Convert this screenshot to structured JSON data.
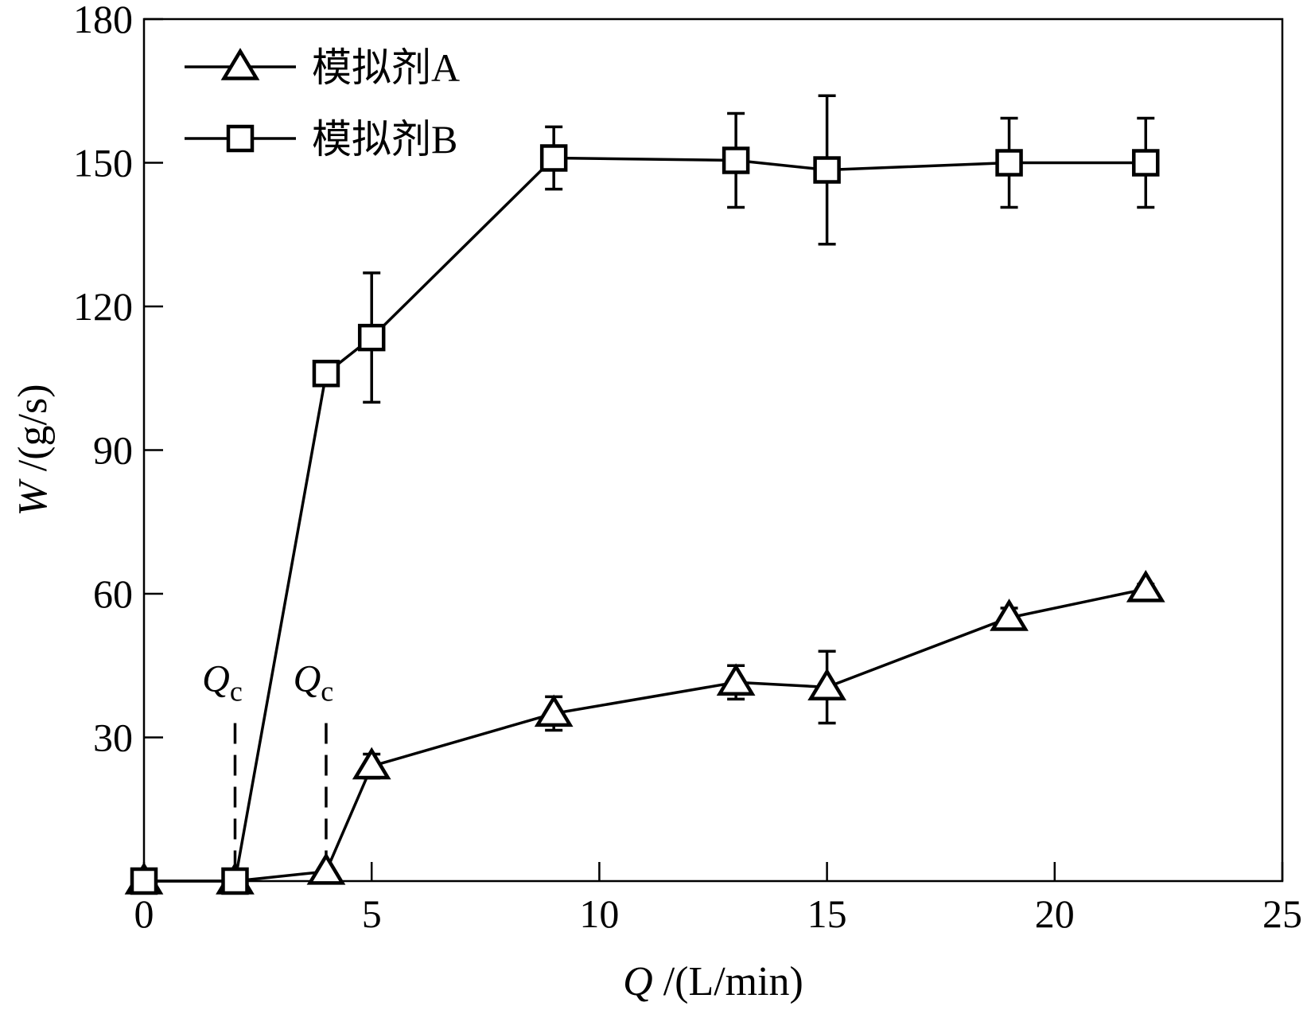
{
  "chart_data": {
    "type": "line",
    "xlabel": {
      "var": "Q",
      "unit": "/(L/min)"
    },
    "ylabel": {
      "var": "W",
      "unit": "/(g/s)"
    },
    "xlim": [
      0,
      25
    ],
    "ylim": [
      0,
      180
    ],
    "xticks": [
      0,
      5,
      10,
      15,
      20,
      25
    ],
    "yticks": [
      30,
      60,
      90,
      120,
      150,
      180
    ],
    "grid": false,
    "legend_position": "top-left",
    "series": [
      {
        "name": "模拟剂A",
        "marker": "triangle",
        "x": [
          0,
          2,
          4,
          5,
          9,
          13,
          15,
          19,
          22
        ],
        "y": [
          0,
          0,
          2,
          24,
          35,
          41.5,
          40.5,
          55,
          61
        ],
        "err": [
          0,
          0,
          0,
          2.5,
          3.5,
          3.5,
          7.5,
          2,
          1
        ]
      },
      {
        "name": "模拟剂B",
        "marker": "square",
        "x": [
          0,
          2,
          4,
          5,
          9,
          13,
          15,
          19,
          22
        ],
        "y": [
          0,
          0,
          106,
          113.5,
          151,
          150.5,
          148.5,
          150,
          150
        ],
        "err": [
          0,
          0,
          0,
          13.5,
          6.5,
          9.8,
          15.5,
          9.3,
          9.3
        ]
      }
    ],
    "annotations": [
      {
        "label": "Q",
        "subscript": "c",
        "x": 2,
        "y_top": 33,
        "style": "dashed"
      },
      {
        "label": "Q",
        "subscript": "c",
        "x": 4,
        "y_top": 33,
        "style": "dashed"
      }
    ]
  }
}
